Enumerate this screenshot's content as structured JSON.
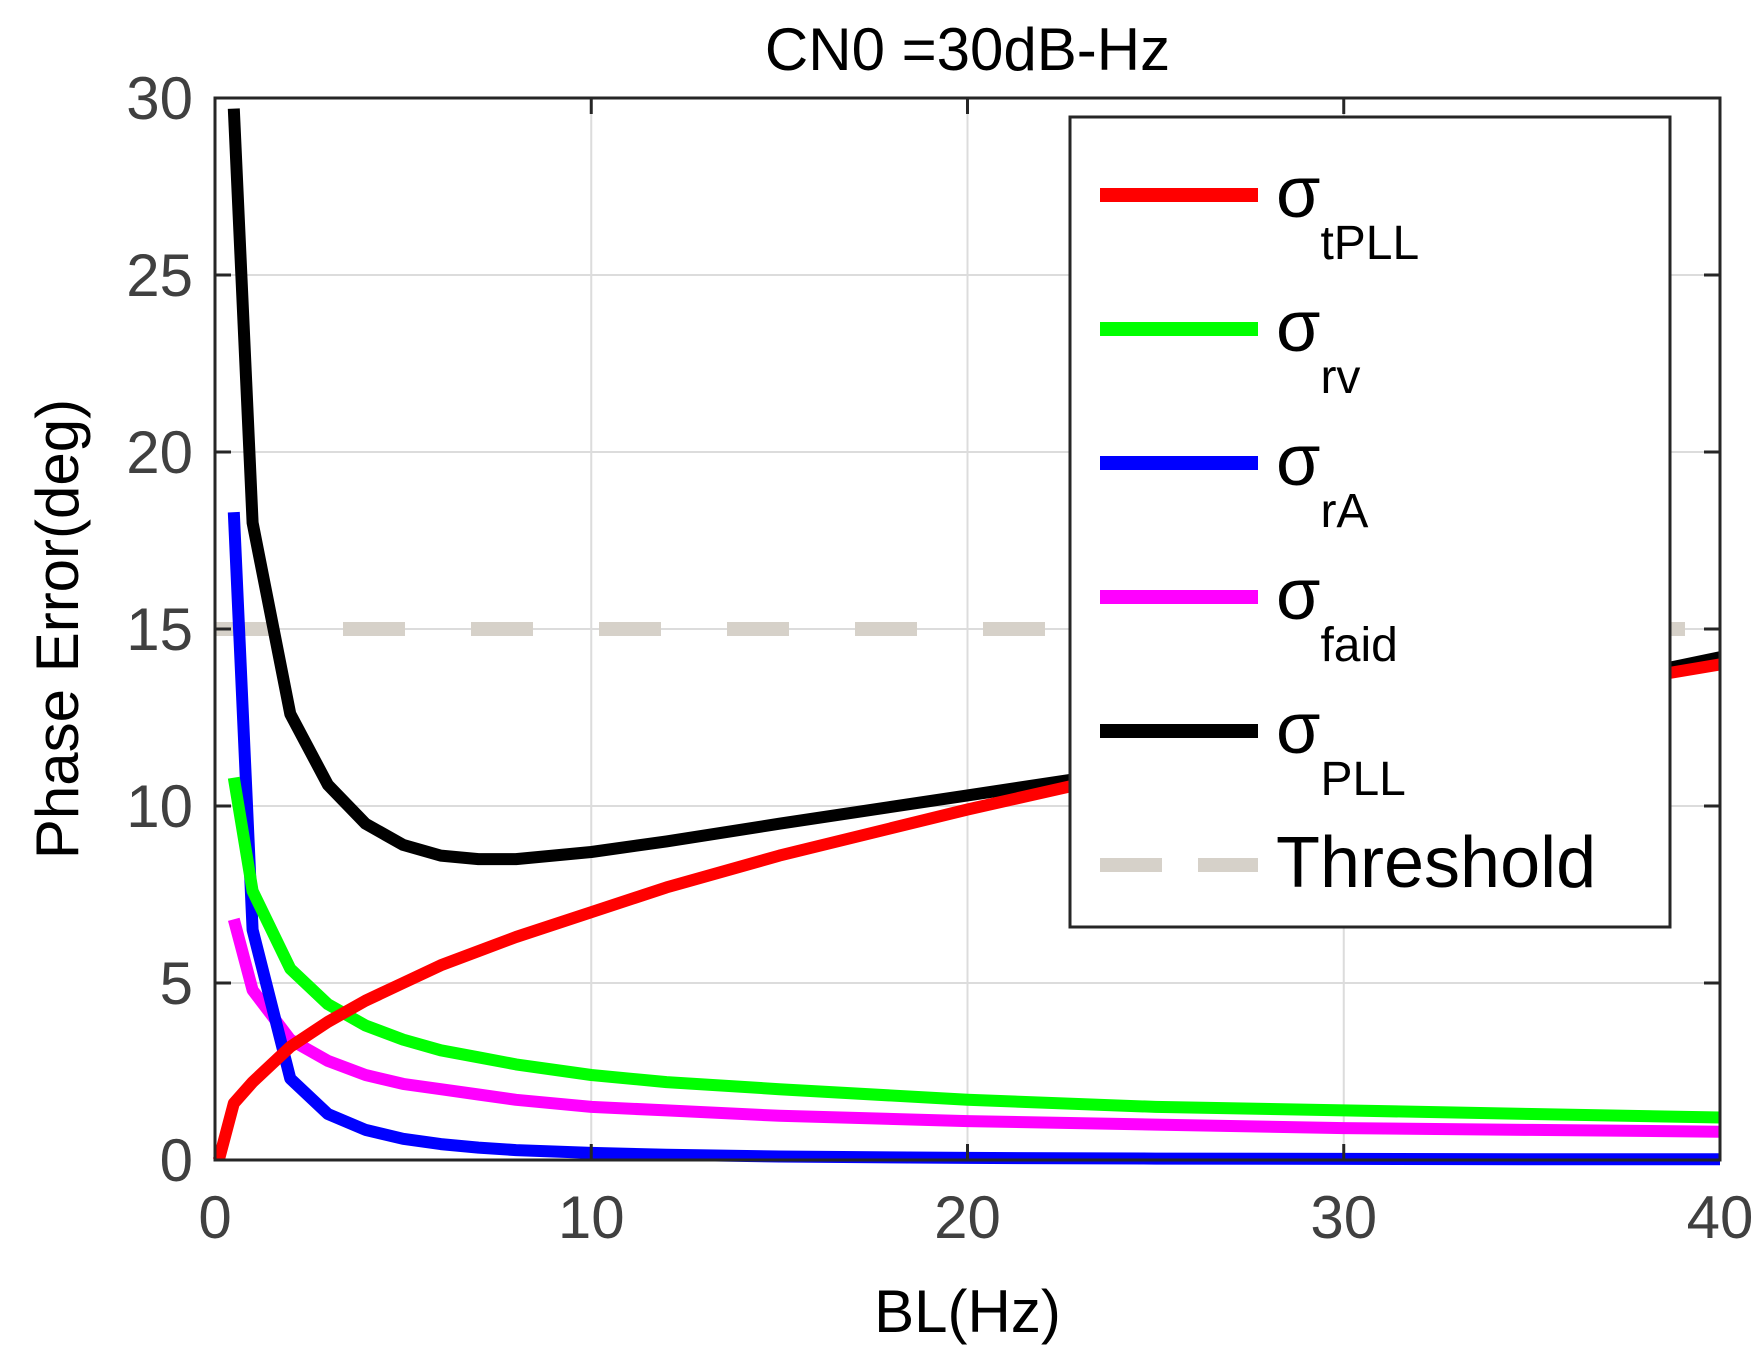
{
  "chart_data": {
    "type": "line",
    "title": "CN0 =30dB-Hz",
    "xlabel": "BL(Hz)",
    "ylabel": "Phase Error(deg)",
    "xlim": [
      0,
      40
    ],
    "ylim": [
      0,
      30
    ],
    "xticks": [
      0,
      10,
      20,
      30,
      40
    ],
    "yticks": [
      0,
      5,
      10,
      15,
      20,
      25,
      30
    ],
    "grid": true,
    "legend_position": "top-right",
    "x": [
      0.1,
      0.5,
      1,
      2,
      3,
      4,
      5,
      6,
      7,
      8,
      10,
      12,
      15,
      20,
      25,
      30,
      35,
      40
    ],
    "series": [
      {
        "name": "σ_tPLL",
        "symbol": "σ",
        "subscript": "tPLL",
        "color": "#ff0000",
        "dash": "solid",
        "values": [
          0.0,
          1.6,
          2.2,
          3.2,
          3.9,
          4.5,
          5.0,
          5.5,
          5.9,
          6.3,
          7.0,
          7.7,
          8.6,
          9.9,
          11.1,
          12.2,
          13.1,
          14.0
        ]
      },
      {
        "name": "σ_rv",
        "symbol": "σ",
        "subscript": "rv",
        "color": "#00ff00",
        "dash": "solid",
        "values": [
          null,
          10.8,
          7.6,
          5.4,
          4.4,
          3.8,
          3.4,
          3.1,
          2.9,
          2.7,
          2.4,
          2.2,
          2.0,
          1.7,
          1.5,
          1.4,
          1.3,
          1.2
        ]
      },
      {
        "name": "σ_rA",
        "symbol": "σ",
        "subscript": "rA",
        "color": "#0000ff",
        "dash": "solid",
        "values": [
          null,
          18.3,
          6.5,
          2.3,
          1.3,
          0.85,
          0.6,
          0.45,
          0.35,
          0.28,
          0.2,
          0.15,
          0.1,
          0.06,
          0.04,
          0.03,
          0.02,
          0.02
        ]
      },
      {
        "name": "σ_faid",
        "symbol": "σ",
        "subscript": "faid",
        "color": "#ff00ff",
        "dash": "solid",
        "values": [
          null,
          6.8,
          4.8,
          3.4,
          2.8,
          2.4,
          2.15,
          2.0,
          1.85,
          1.7,
          1.5,
          1.4,
          1.25,
          1.1,
          1.0,
          0.9,
          0.85,
          0.8
        ]
      },
      {
        "name": "σ_PLL",
        "symbol": "σ",
        "subscript": "PLL",
        "color": "#000000",
        "dash": "solid",
        "values": [
          null,
          29.7,
          18.0,
          12.6,
          10.6,
          9.5,
          8.9,
          8.6,
          8.5,
          8.5,
          8.7,
          9.0,
          9.5,
          10.3,
          11.1,
          12.1,
          13.1,
          14.2
        ]
      },
      {
        "name": "Threshold",
        "symbol": "Threshold",
        "subscript": "",
        "color": "#d6d1c9",
        "dash": "dashed",
        "values": [
          15,
          15,
          15,
          15,
          15,
          15,
          15,
          15,
          15,
          15,
          15,
          15,
          15,
          15,
          15,
          15,
          15,
          15
        ]
      }
    ]
  }
}
